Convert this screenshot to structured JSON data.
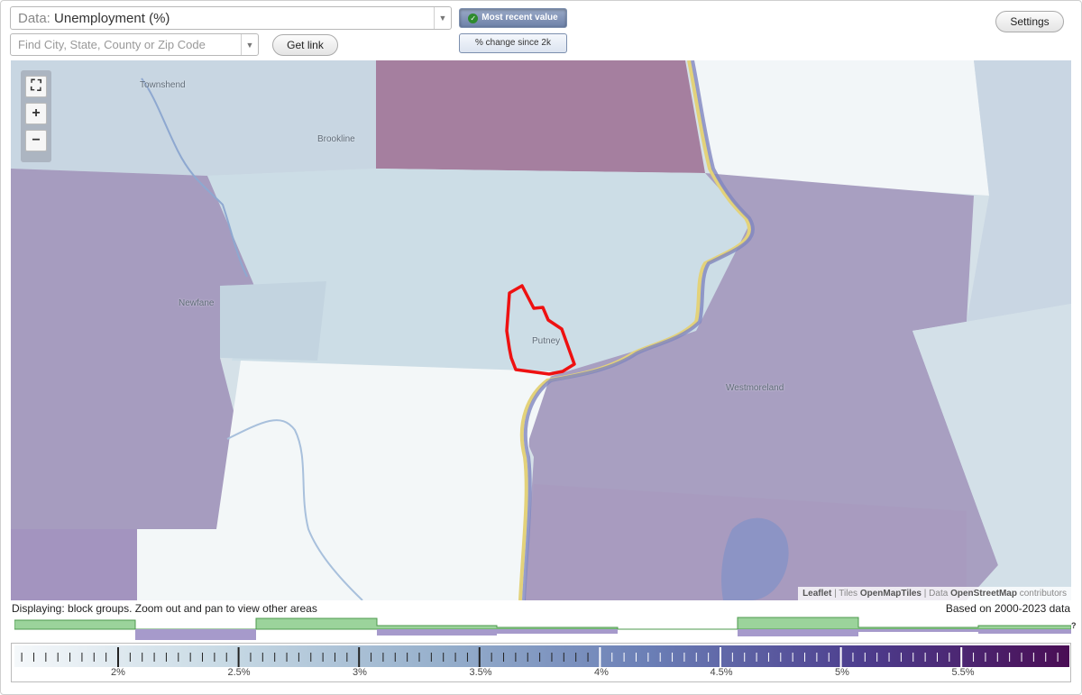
{
  "controls": {
    "data_prefix": "Data:",
    "data_value": "Unemployment (%)",
    "search_placeholder": "Find City, State, County or Zip Code",
    "get_link_label": "Get link",
    "most_recent_label": "Most recent value",
    "pct_change_label": "% change since 2k",
    "settings_label": "Settings"
  },
  "map": {
    "places": [
      "Townshend",
      "Brookline",
      "Newfane",
      "Putney",
      "Westmoreland"
    ],
    "rivers": [
      "West River",
      "Connecticut River"
    ],
    "attribution": {
      "leaflet": "Leaflet",
      "tiles_prefix": "Tiles",
      "tiles": "OpenMapTiles",
      "data_prefix": "Data",
      "data": "OpenStreetMap",
      "suffix": "contributors"
    },
    "zoom_controls": {
      "fullscreen_icon": "fullscreen-icon",
      "zoom_in": "+",
      "zoom_out": "−"
    }
  },
  "status": {
    "displaying": "Displaying: block groups. Zoom out and pan to view other areas",
    "based_on": "Based on 2000-2023 data",
    "help": "?"
  },
  "legend": {
    "tick_labels": [
      "2%",
      "2.5%",
      "3%",
      "3.5%",
      "4%",
      "4.5%",
      "5%",
      "5.5%"
    ],
    "gradient_colors": [
      "#f5f8fa",
      "#c7d9e4",
      "#97b0cc",
      "#6b7fb6",
      "#4d3e8e",
      "#4a0d54"
    ]
  },
  "colors": {
    "selected_outline": "#ee1111",
    "histogram_green": "#9bd39b",
    "histogram_purple": "#a69acb"
  }
}
